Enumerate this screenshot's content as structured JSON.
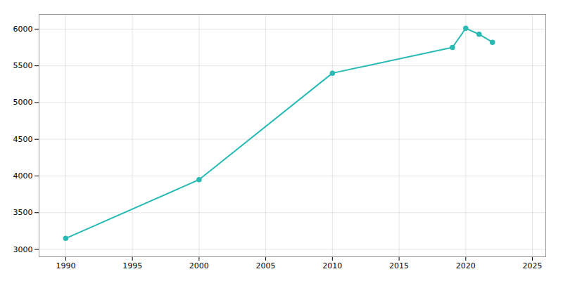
{
  "chart_data": {
    "type": "line",
    "x": [
      1990,
      2000,
      2010,
      2019,
      2020,
      2021,
      2022
    ],
    "values": [
      3150,
      3950,
      5400,
      5750,
      6010,
      5930,
      5820
    ],
    "color": "#2abab4",
    "marker": "circle",
    "xlim": [
      1988,
      2026
    ],
    "ylim": [
      2900,
      6200
    ],
    "xticks": [
      1990,
      1995,
      2000,
      2005,
      2010,
      2015,
      2020,
      2025
    ],
    "yticks": [
      3000,
      3500,
      4000,
      4500,
      5000,
      5500,
      6000
    ],
    "grid": true
  }
}
